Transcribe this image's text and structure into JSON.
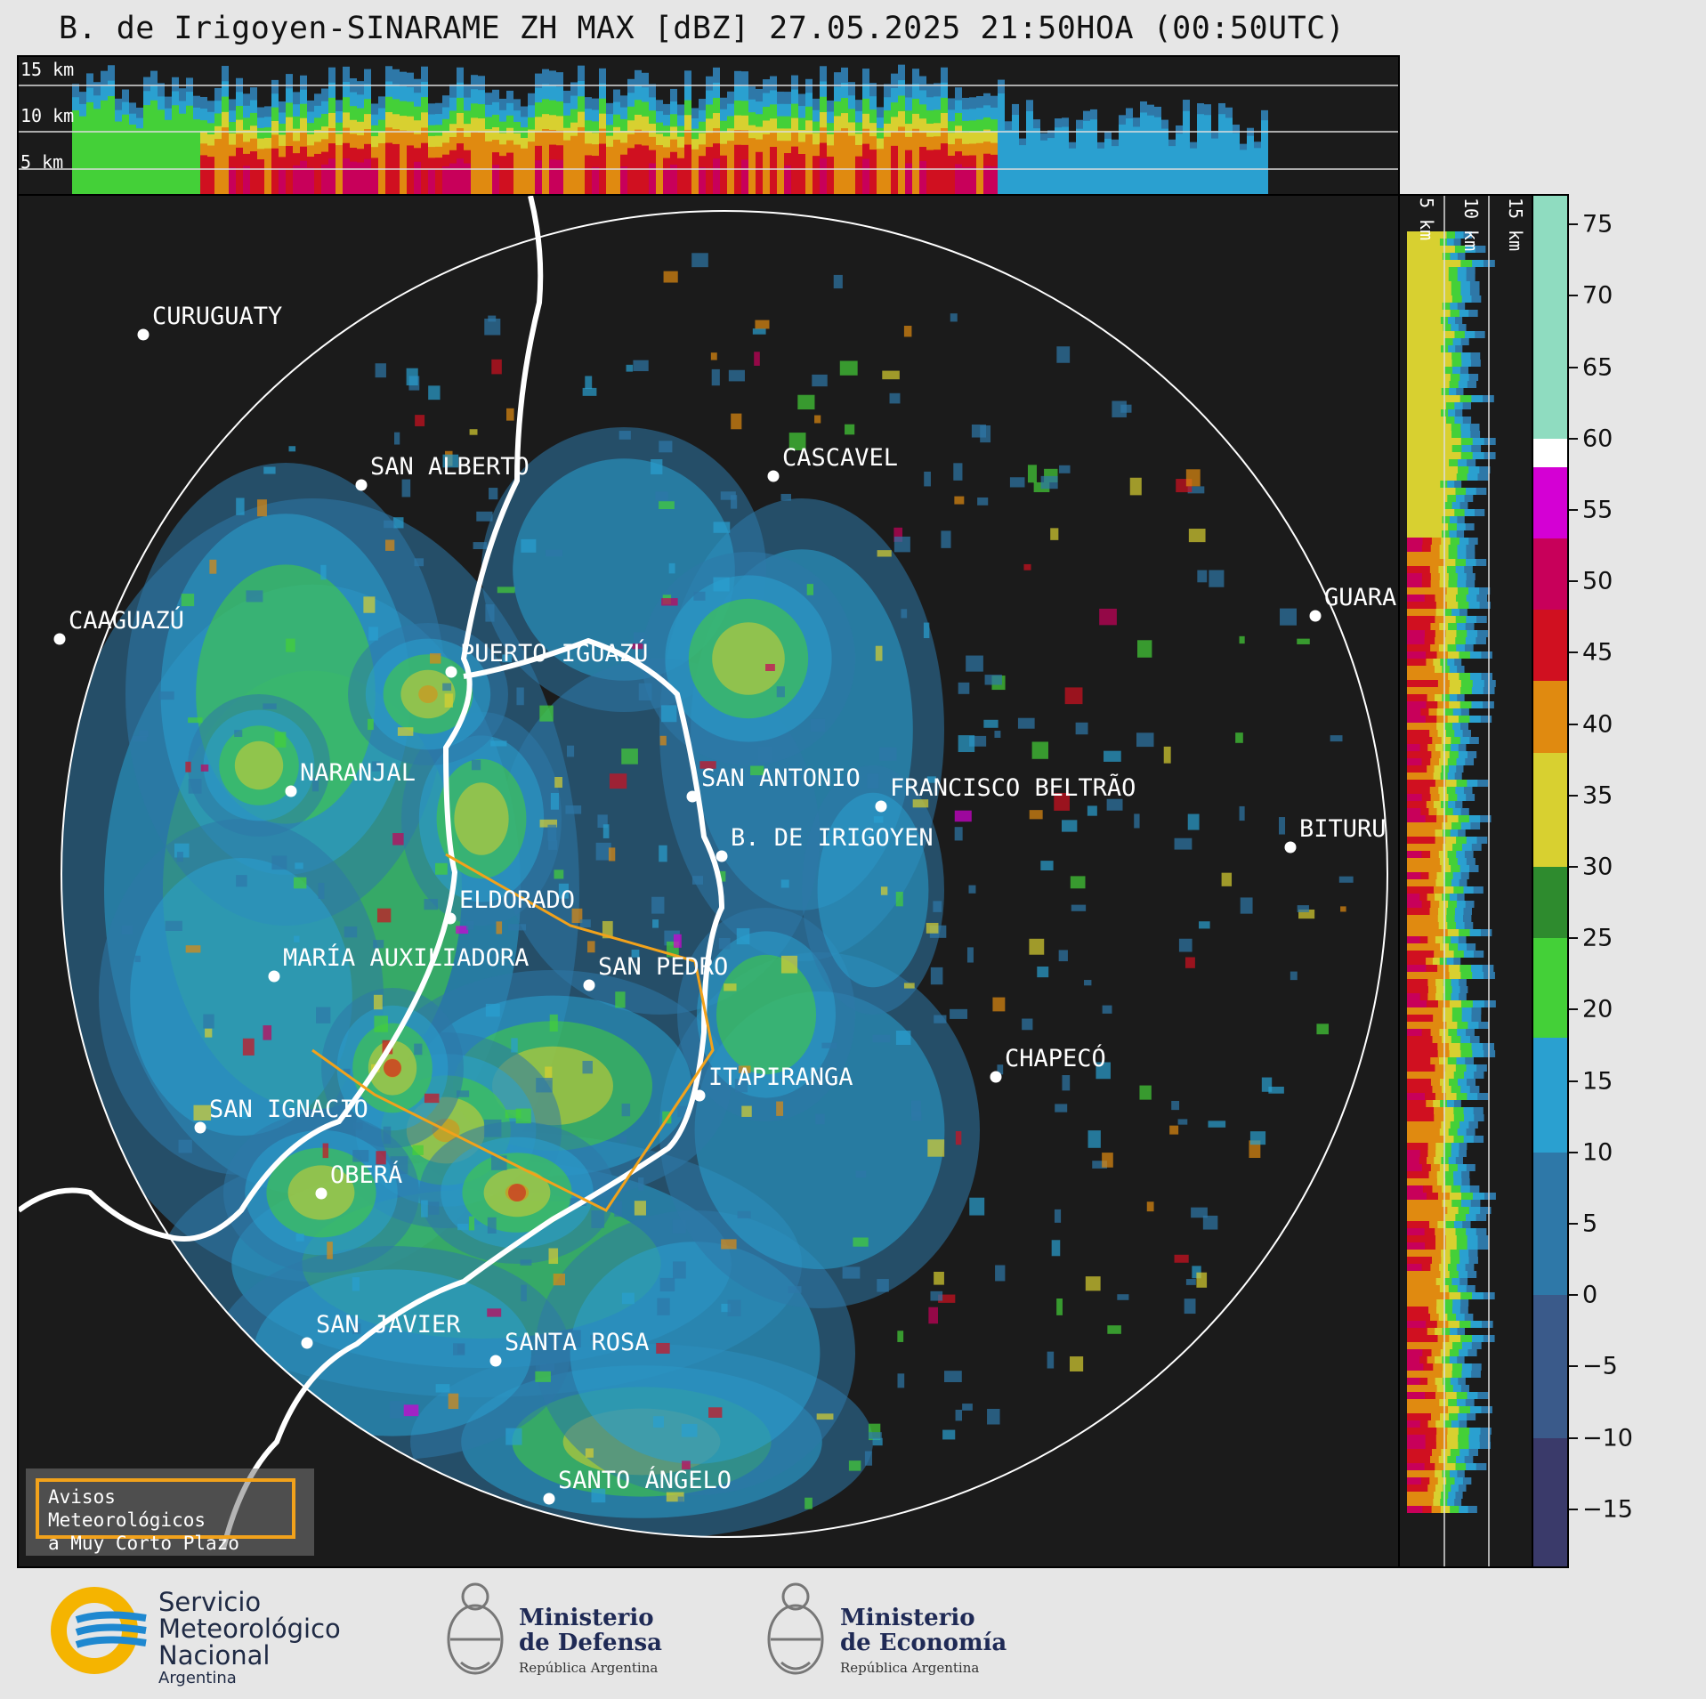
{
  "title": "B. de Irigoyen-SINARAME ZH MAX [dBZ] 27.05.2025 21:50HOA (00:50UTC)",
  "top_profile": {
    "levels": [
      {
        "label": "15 km",
        "km": 15
      },
      {
        "label": "10 km",
        "km": 10
      },
      {
        "label": "5 km",
        "km": 5
      }
    ]
  },
  "side_profile": {
    "levels": [
      {
        "label": "5 km",
        "km": 5
      },
      {
        "label": "10 km",
        "km": 10
      },
      {
        "label": "15 km",
        "km": 15
      }
    ]
  },
  "colorbar": {
    "unit": "dBZ",
    "min": -19,
    "max": 77,
    "ticks": [
      75,
      70,
      65,
      60,
      55,
      50,
      45,
      40,
      35,
      30,
      25,
      20,
      15,
      10,
      5,
      0,
      -5,
      -10,
      -15
    ],
    "tick_labels": [
      "75",
      "70",
      "65",
      "60",
      "55",
      "50",
      "45",
      "40",
      "35",
      "30",
      "25",
      "20",
      "15",
      "10",
      "5",
      "0",
      "−5",
      "−10",
      "−15"
    ],
    "bands": [
      {
        "from": 60,
        "to": 77,
        "color": "#8fdcc0"
      },
      {
        "from": 58,
        "to": 60,
        "color": "#ffffff"
      },
      {
        "from": 53,
        "to": 58,
        "color": "#d400d4"
      },
      {
        "from": 48,
        "to": 53,
        "color": "#c8005a"
      },
      {
        "from": 43,
        "to": 48,
        "color": "#d01020"
      },
      {
        "from": 38,
        "to": 43,
        "color": "#e08a10"
      },
      {
        "from": 30,
        "to": 38,
        "color": "#d8d030"
      },
      {
        "from": 25,
        "to": 30,
        "color": "#2e8b2e"
      },
      {
        "from": 18,
        "to": 25,
        "color": "#44d038"
      },
      {
        "from": 10,
        "to": 18,
        "color": "#2aa0d0"
      },
      {
        "from": 0,
        "to": 10,
        "color": "#2e78a8"
      },
      {
        "from": -10,
        "to": 0,
        "color": "#3a5a8a"
      },
      {
        "from": -19,
        "to": -10,
        "color": "#3a3a6a"
      }
    ]
  },
  "cities": [
    {
      "name": "CURUGUATY"
    },
    {
      "name": "SAN ALBERTO"
    },
    {
      "name": "CASCAVEL"
    },
    {
      "name": "CAAGUAZÚ"
    },
    {
      "name": "GUARA"
    },
    {
      "name": "PUERTO IGUAZÚ"
    },
    {
      "name": "NARANJAL"
    },
    {
      "name": "SAN ANTONIO"
    },
    {
      "name": "FRANCISCO BELTRÃO"
    },
    {
      "name": "BITURU"
    },
    {
      "name": "B. DE IRIGOYEN"
    },
    {
      "name": "ELDORADO"
    },
    {
      "name": "MARÍA AUXILIADORA"
    },
    {
      "name": "SAN PEDRO"
    },
    {
      "name": "CHAPECÓ"
    },
    {
      "name": "ITAPIRANGA"
    },
    {
      "name": "SAN IGNACIO"
    },
    {
      "name": "OBERÁ"
    },
    {
      "name": "SAN JAVIER"
    },
    {
      "name": "SANTA ROSA"
    },
    {
      "name": "SANTO ÁNGELO"
    }
  ],
  "aviso": {
    "line1": "Avisos Meteorológicos",
    "line2": "a Muy Corto Plazo"
  },
  "footer": {
    "smn": {
      "line1": "Servicio",
      "line2": "Meteorológico",
      "line3": "Nacional",
      "line4": "Argentina"
    },
    "defensa": {
      "line1": "Ministerio",
      "line2": "de Defensa",
      "line3": "República Argentina"
    },
    "economia": {
      "line1": "Ministerio",
      "line2": "de Economía",
      "line3": "República Argentina"
    }
  },
  "colors": {
    "background": "#e6e6e6",
    "panel": "#1b1b1b",
    "accent_orange": "#f2a21b",
    "smn_blue": "#1e88d0",
    "smn_yellow": "#f5b400"
  }
}
